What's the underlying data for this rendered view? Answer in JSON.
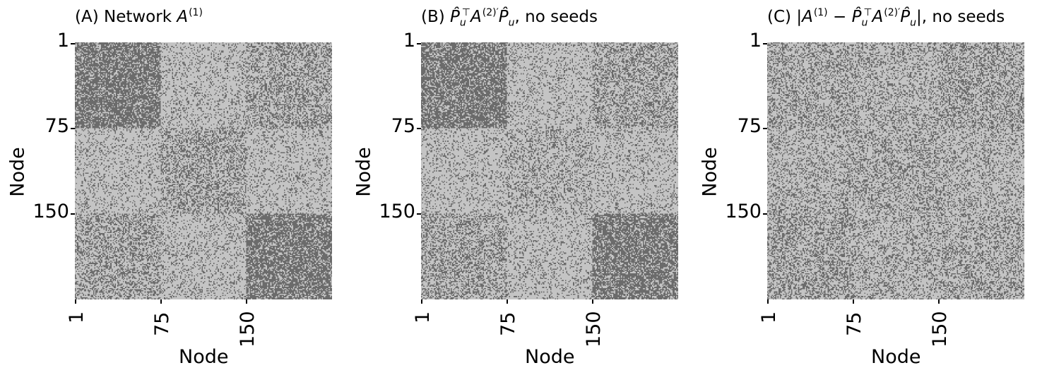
{
  "chart_data": [
    {
      "type": "heatmap",
      "panel": "A",
      "title_prefix": "(A) Network ",
      "title_sym": "A",
      "title_sup": "(1)",
      "title_suffix": "",
      "xlabel": "Node",
      "ylabel": "Node",
      "n_nodes": 225,
      "tick_labels": [
        "1",
        "75",
        "150"
      ],
      "tick_positions": [
        1,
        75,
        150
      ],
      "colormap": {
        "edge": "#6b6b6b",
        "no_edge": "#c4c4c4"
      },
      "block_edge_density": [
        [
          0.7,
          0.2,
          0.4
        ],
        [
          0.2,
          0.4,
          0.2
        ],
        [
          0.4,
          0.2,
          0.7
        ]
      ]
    },
    {
      "type": "heatmap",
      "panel": "B",
      "title_text": "(B) P̂u⊤A(2)′P̂u, no seeds",
      "xlabel": "Node",
      "ylabel": "Node",
      "n_nodes": 225,
      "tick_labels": [
        "1",
        "75",
        "150"
      ],
      "tick_positions": [
        1,
        75,
        150
      ],
      "colormap": {
        "edge": "#6b6b6b",
        "no_edge": "#c4c4c4"
      },
      "block_edge_density": [
        [
          0.7,
          0.2,
          0.4
        ],
        [
          0.2,
          0.3,
          0.2
        ],
        [
          0.4,
          0.2,
          0.7
        ]
      ]
    },
    {
      "type": "heatmap",
      "panel": "C",
      "title_text": "(C) |A(1) − P̂u⊤A(2)′P̂u|, no seeds",
      "xlabel": "Node",
      "ylabel": "Node",
      "n_nodes": 225,
      "tick_labels": [
        "1",
        "75",
        "150"
      ],
      "tick_positions": [
        1,
        75,
        150
      ],
      "colormap": {
        "edge": "#6b6b6b",
        "no_edge": "#c4c4c4"
      },
      "block_edge_density": [
        [
          0.35,
          0.3,
          0.4
        ],
        [
          0.3,
          0.35,
          0.3
        ],
        [
          0.4,
          0.3,
          0.35
        ]
      ]
    }
  ]
}
